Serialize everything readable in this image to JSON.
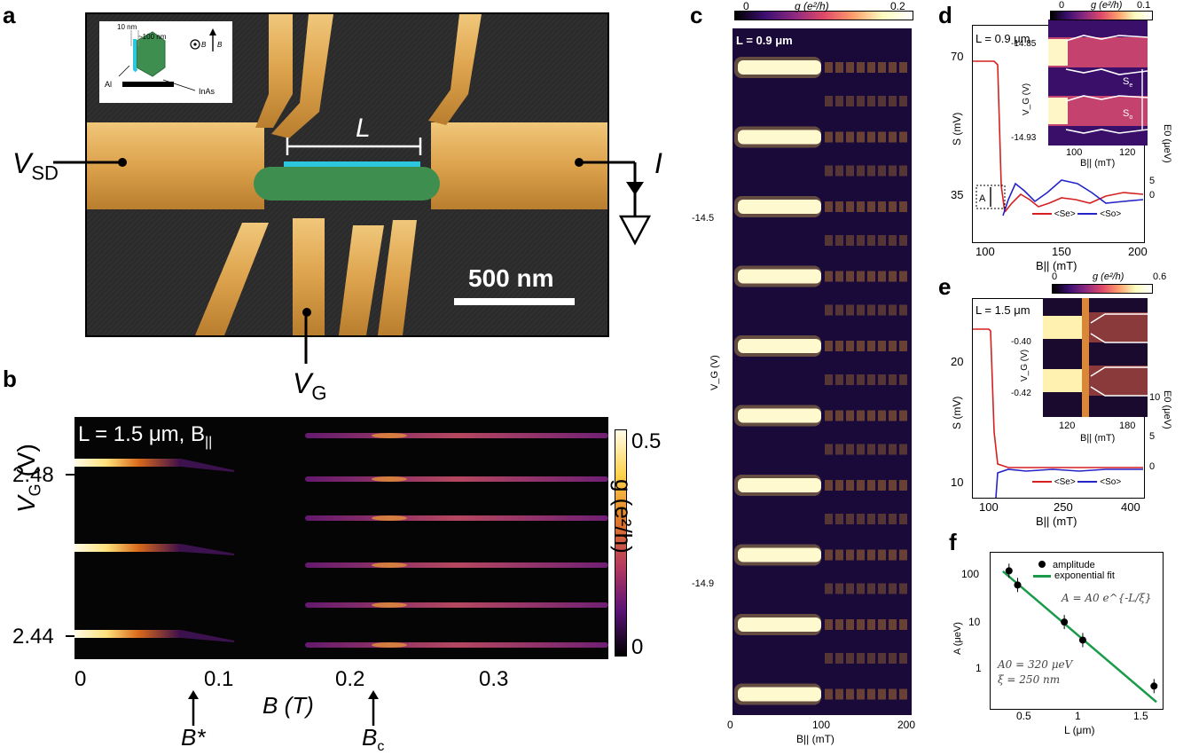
{
  "panels": {
    "a": {
      "letter": "a",
      "inset_labels": {
        "d1": "10 nm",
        "d2": "~100 nm",
        "b_par": "B",
        "b_perp": "B",
        "al": "Al",
        "inas": "InAs"
      },
      "length_label": "L",
      "scale_bar": "500 nm",
      "vsd_main": "V",
      "vsd_sub": "SD",
      "vg_main": "V",
      "vg_sub": "G",
      "current": "I"
    },
    "b": {
      "letter": "b",
      "title": "L = 1.5 μm, B",
      "title_sub": "||",
      "ylabel_main": "V",
      "ylabel_sub": "G",
      "ylabel_unit": " (V)",
      "yticks": [
        "2.48",
        "2.44"
      ],
      "xticks": [
        "0",
        "0.1",
        "0.2",
        "0.3"
      ],
      "xlabel": "B (T)",
      "bstar": "B*",
      "bc_main": "B",
      "bc_sub": "c",
      "cbar_label": "g (e²/h)",
      "cbar_ticks": [
        "0.5",
        "0"
      ]
    },
    "c": {
      "letter": "c",
      "cbar_title": "g (e²/h)",
      "cbar_ticks": [
        "0",
        "0.2"
      ],
      "label": "L = 0.9 μm",
      "ylabel": "V_G (V)",
      "yticks": [
        "-14.5",
        "-14.9"
      ],
      "xticks": [
        "0",
        "100",
        "200"
      ],
      "xlabel": "B|| (mT)"
    },
    "d": {
      "letter": "d",
      "label": "L = 0.9 μm",
      "cbar_title": "g (e²/h)",
      "cbar_ticks": [
        "0",
        "0.1"
      ],
      "inset_yticks": [
        "-14.85",
        "-14.93"
      ],
      "inset_xticks": [
        "100",
        "120"
      ],
      "inset_ylabel": "V_G (V)",
      "inset_xlabel": "B|| (mT)",
      "se": "S",
      "se_sub": "e",
      "so": "S",
      "so_sub": "o",
      "yticks": [
        "70",
        "35"
      ],
      "ylabel": "S (mV)",
      "xticks": [
        "100",
        "150",
        "200"
      ],
      "xlabel": "B|| (mT)",
      "right_yticks": [
        "5",
        "0"
      ],
      "right_ylabel": "E0 (μeV)",
      "amp_label": "A",
      "legend_e": "<Se>",
      "legend_o": "<So>"
    },
    "e": {
      "letter": "e",
      "label": "L = 1.5 μm",
      "cbar_title": "g (e²/h)",
      "cbar_ticks": [
        "0",
        "0.6"
      ],
      "inset_yticks": [
        "-0.40",
        "-0.42"
      ],
      "inset_xticks": [
        "120",
        "180"
      ],
      "inset_ylabel": "V_G (V)",
      "inset_xlabel": "B|| (mT)",
      "yticks": [
        "20",
        "10"
      ],
      "ylabel": "S (mV)",
      "xticks": [
        "100",
        "250",
        "400"
      ],
      "xlabel": "B|| (mT)",
      "right_yticks": [
        "10",
        "5",
        "0"
      ],
      "right_ylabel": "E0 (μeV)",
      "legend_e": "<Se>",
      "legend_o": "<So>"
    },
    "f": {
      "letter": "f",
      "legend_points": "amplitude",
      "legend_fit": "exponential fit",
      "formula": "A = A0 e^{-L/ξ}",
      "param_a0": "A0 = 320 μeV",
      "param_xi": "ξ = 250 nm",
      "ylabel": "A (μeV)",
      "yticks": [
        "100",
        "10",
        "1"
      ],
      "xticks": [
        "0.5",
        "1",
        "1.5"
      ],
      "xlabel": "L (μm)"
    }
  },
  "colors": {
    "gold": "#e6b25a",
    "green": "#3e8f4f",
    "cyan": "#2cc6df",
    "red": "#d62020",
    "blue": "#2424c8",
    "fit": "#1a9b4a"
  },
  "chart_data": [
    {
      "type": "scatter",
      "xlabel": "L (μm)",
      "ylabel": "A (μeV)",
      "yscale": "log",
      "series": [
        {
          "name": "amplitude",
          "x": [
            0.35,
            0.42,
            0.8,
            0.95,
            1.53
          ],
          "y": [
            100,
            58,
            14,
            7,
            1.2
          ]
        },
        {
          "name": "exponential fit",
          "x": [
            0.3,
            1.55
          ],
          "y": [
            98,
            0.65
          ]
        }
      ]
    }
  ]
}
